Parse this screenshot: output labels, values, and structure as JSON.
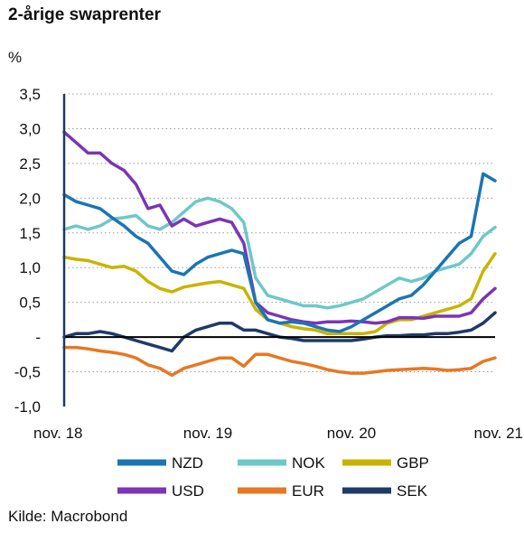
{
  "header": {
    "title": "2-årige swaprenter",
    "unit": "%"
  },
  "footer": {
    "source": "Kilde: Macrobond"
  },
  "chart_data": {
    "type": "line",
    "title": "2-årige swaprenter",
    "ylabel": "%",
    "ylim": [
      -1.0,
      3.5
    ],
    "yticks": [
      {
        "value": 3.5,
        "label": "3,5"
      },
      {
        "value": 3.0,
        "label": "3,0"
      },
      {
        "value": 2.5,
        "label": "2,5"
      },
      {
        "value": 2.0,
        "label": "2,0"
      },
      {
        "value": 1.5,
        "label": "1,5"
      },
      {
        "value": 1.0,
        "label": "1,0"
      },
      {
        "value": 0.5,
        "label": "0,5"
      },
      {
        "value": 0.0,
        "label": "-"
      },
      {
        "value": -0.5,
        "label": "-0,5"
      },
      {
        "value": -1.0,
        "label": "-1,0"
      }
    ],
    "xlim": [
      "2018-11",
      "2021-11"
    ],
    "xticks": [
      {
        "value": "2018-11",
        "label": "nov. 18"
      },
      {
        "value": "2019-11",
        "label": "nov. 19"
      },
      {
        "value": "2020-11",
        "label": "nov. 20"
      },
      {
        "value": "2021-11",
        "label": "nov. 21"
      }
    ],
    "grid": "horizontal-dotted",
    "legend_position": "bottom",
    "series": [
      {
        "name": "NZD",
        "color": "#1b75b4",
        "points": [
          [
            "2018-11",
            2.05
          ],
          [
            "2018-12",
            1.95
          ],
          [
            "2019-01",
            1.9
          ],
          [
            "2019-02",
            1.85
          ],
          [
            "2019-03",
            1.72
          ],
          [
            "2019-04",
            1.6
          ],
          [
            "2019-05",
            1.45
          ],
          [
            "2019-06",
            1.35
          ],
          [
            "2019-07",
            1.15
          ],
          [
            "2019-08",
            0.95
          ],
          [
            "2019-09",
            0.9
          ],
          [
            "2019-10",
            1.05
          ],
          [
            "2019-11",
            1.15
          ],
          [
            "2019-12",
            1.2
          ],
          [
            "2020-01",
            1.25
          ],
          [
            "2020-02",
            1.2
          ],
          [
            "2020-03",
            0.5
          ],
          [
            "2020-04",
            0.25
          ],
          [
            "2020-05",
            0.2
          ],
          [
            "2020-06",
            0.22
          ],
          [
            "2020-07",
            0.2
          ],
          [
            "2020-08",
            0.15
          ],
          [
            "2020-09",
            0.1
          ],
          [
            "2020-10",
            0.08
          ],
          [
            "2020-11",
            0.15
          ],
          [
            "2020-12",
            0.25
          ],
          [
            "2021-01",
            0.35
          ],
          [
            "2021-02",
            0.45
          ],
          [
            "2021-03",
            0.55
          ],
          [
            "2021-04",
            0.6
          ],
          [
            "2021-05",
            0.75
          ],
          [
            "2021-06",
            0.95
          ],
          [
            "2021-07",
            1.15
          ],
          [
            "2021-08",
            1.35
          ],
          [
            "2021-09",
            1.45
          ],
          [
            "2021-10",
            2.35
          ],
          [
            "2021-11",
            2.25
          ]
        ]
      },
      {
        "name": "NOK",
        "color": "#6ec8c8",
        "points": [
          [
            "2018-11",
            1.55
          ],
          [
            "2018-12",
            1.6
          ],
          [
            "2019-01",
            1.55
          ],
          [
            "2019-02",
            1.6
          ],
          [
            "2019-03",
            1.7
          ],
          [
            "2019-04",
            1.72
          ],
          [
            "2019-05",
            1.75
          ],
          [
            "2019-06",
            1.6
          ],
          [
            "2019-07",
            1.55
          ],
          [
            "2019-08",
            1.65
          ],
          [
            "2019-09",
            1.8
          ],
          [
            "2019-10",
            1.95
          ],
          [
            "2019-11",
            2.0
          ],
          [
            "2019-12",
            1.95
          ],
          [
            "2020-01",
            1.85
          ],
          [
            "2020-02",
            1.65
          ],
          [
            "2020-03",
            0.85
          ],
          [
            "2020-04",
            0.6
          ],
          [
            "2020-05",
            0.55
          ],
          [
            "2020-06",
            0.5
          ],
          [
            "2020-07",
            0.45
          ],
          [
            "2020-08",
            0.45
          ],
          [
            "2020-09",
            0.42
          ],
          [
            "2020-10",
            0.45
          ],
          [
            "2020-11",
            0.5
          ],
          [
            "2020-12",
            0.55
          ],
          [
            "2021-01",
            0.65
          ],
          [
            "2021-02",
            0.75
          ],
          [
            "2021-03",
            0.85
          ],
          [
            "2021-04",
            0.8
          ],
          [
            "2021-05",
            0.85
          ],
          [
            "2021-06",
            0.95
          ],
          [
            "2021-07",
            1.0
          ],
          [
            "2021-08",
            1.05
          ],
          [
            "2021-09",
            1.2
          ],
          [
            "2021-10",
            1.45
          ],
          [
            "2021-11",
            1.58
          ]
        ]
      },
      {
        "name": "GBP",
        "color": "#c8b400",
        "points": [
          [
            "2018-11",
            1.15
          ],
          [
            "2018-12",
            1.12
          ],
          [
            "2019-01",
            1.1
          ],
          [
            "2019-02",
            1.05
          ],
          [
            "2019-03",
            1.0
          ],
          [
            "2019-04",
            1.02
          ],
          [
            "2019-05",
            0.95
          ],
          [
            "2019-06",
            0.8
          ],
          [
            "2019-07",
            0.7
          ],
          [
            "2019-08",
            0.65
          ],
          [
            "2019-09",
            0.72
          ],
          [
            "2019-10",
            0.75
          ],
          [
            "2019-11",
            0.78
          ],
          [
            "2019-12",
            0.8
          ],
          [
            "2020-01",
            0.75
          ],
          [
            "2020-02",
            0.7
          ],
          [
            "2020-03",
            0.4
          ],
          [
            "2020-04",
            0.25
          ],
          [
            "2020-05",
            0.2
          ],
          [
            "2020-06",
            0.15
          ],
          [
            "2020-07",
            0.12
          ],
          [
            "2020-08",
            0.1
          ],
          [
            "2020-09",
            0.05
          ],
          [
            "2020-10",
            0.05
          ],
          [
            "2020-11",
            0.05
          ],
          [
            "2020-12",
            0.05
          ],
          [
            "2021-01",
            0.08
          ],
          [
            "2021-02",
            0.2
          ],
          [
            "2021-03",
            0.25
          ],
          [
            "2021-04",
            0.25
          ],
          [
            "2021-05",
            0.3
          ],
          [
            "2021-06",
            0.35
          ],
          [
            "2021-07",
            0.4
          ],
          [
            "2021-08",
            0.45
          ],
          [
            "2021-09",
            0.55
          ],
          [
            "2021-10",
            0.95
          ],
          [
            "2021-11",
            1.2
          ]
        ]
      },
      {
        "name": "USD",
        "color": "#7b35b5",
        "points": [
          [
            "2018-11",
            2.95
          ],
          [
            "2018-12",
            2.8
          ],
          [
            "2019-01",
            2.65
          ],
          [
            "2019-02",
            2.65
          ],
          [
            "2019-03",
            2.5
          ],
          [
            "2019-04",
            2.4
          ],
          [
            "2019-05",
            2.2
          ],
          [
            "2019-06",
            1.85
          ],
          [
            "2019-07",
            1.9
          ],
          [
            "2019-08",
            1.6
          ],
          [
            "2019-09",
            1.7
          ],
          [
            "2019-10",
            1.6
          ],
          [
            "2019-11",
            1.65
          ],
          [
            "2019-12",
            1.7
          ],
          [
            "2020-01",
            1.65
          ],
          [
            "2020-02",
            1.35
          ],
          [
            "2020-03",
            0.5
          ],
          [
            "2020-04",
            0.35
          ],
          [
            "2020-05",
            0.3
          ],
          [
            "2020-06",
            0.25
          ],
          [
            "2020-07",
            0.22
          ],
          [
            "2020-08",
            0.2
          ],
          [
            "2020-09",
            0.22
          ],
          [
            "2020-10",
            0.22
          ],
          [
            "2020-11",
            0.23
          ],
          [
            "2020-12",
            0.22
          ],
          [
            "2021-01",
            0.2
          ],
          [
            "2021-02",
            0.22
          ],
          [
            "2021-03",
            0.28
          ],
          [
            "2021-04",
            0.28
          ],
          [
            "2021-05",
            0.27
          ],
          [
            "2021-06",
            0.3
          ],
          [
            "2021-07",
            0.3
          ],
          [
            "2021-08",
            0.3
          ],
          [
            "2021-09",
            0.35
          ],
          [
            "2021-10",
            0.55
          ],
          [
            "2021-11",
            0.7
          ]
        ]
      },
      {
        "name": "EUR",
        "color": "#e87722",
        "points": [
          [
            "2018-11",
            -0.15
          ],
          [
            "2018-12",
            -0.15
          ],
          [
            "2019-01",
            -0.17
          ],
          [
            "2019-02",
            -0.2
          ],
          [
            "2019-03",
            -0.22
          ],
          [
            "2019-04",
            -0.25
          ],
          [
            "2019-05",
            -0.3
          ],
          [
            "2019-06",
            -0.4
          ],
          [
            "2019-07",
            -0.45
          ],
          [
            "2019-08",
            -0.55
          ],
          [
            "2019-09",
            -0.45
          ],
          [
            "2019-10",
            -0.4
          ],
          [
            "2019-11",
            -0.35
          ],
          [
            "2019-12",
            -0.3
          ],
          [
            "2020-01",
            -0.3
          ],
          [
            "2020-02",
            -0.42
          ],
          [
            "2020-03",
            -0.25
          ],
          [
            "2020-04",
            -0.25
          ],
          [
            "2020-05",
            -0.3
          ],
          [
            "2020-06",
            -0.35
          ],
          [
            "2020-07",
            -0.38
          ],
          [
            "2020-08",
            -0.42
          ],
          [
            "2020-09",
            -0.47
          ],
          [
            "2020-10",
            -0.5
          ],
          [
            "2020-11",
            -0.52
          ],
          [
            "2020-12",
            -0.52
          ],
          [
            "2021-01",
            -0.5
          ],
          [
            "2021-02",
            -0.48
          ],
          [
            "2021-03",
            -0.47
          ],
          [
            "2021-04",
            -0.46
          ],
          [
            "2021-05",
            -0.45
          ],
          [
            "2021-06",
            -0.46
          ],
          [
            "2021-07",
            -0.48
          ],
          [
            "2021-08",
            -0.47
          ],
          [
            "2021-09",
            -0.45
          ],
          [
            "2021-10",
            -0.35
          ],
          [
            "2021-11",
            -0.3
          ]
        ]
      },
      {
        "name": "SEK",
        "color": "#1f3a68",
        "points": [
          [
            "2018-11",
            0.0
          ],
          [
            "2018-12",
            0.05
          ],
          [
            "2019-01",
            0.05
          ],
          [
            "2019-02",
            0.08
          ],
          [
            "2019-03",
            0.05
          ],
          [
            "2019-04",
            0.0
          ],
          [
            "2019-05",
            -0.05
          ],
          [
            "2019-06",
            -0.1
          ],
          [
            "2019-07",
            -0.15
          ],
          [
            "2019-08",
            -0.2
          ],
          [
            "2019-09",
            0.0
          ],
          [
            "2019-10",
            0.1
          ],
          [
            "2019-11",
            0.15
          ],
          [
            "2019-12",
            0.2
          ],
          [
            "2020-01",
            0.2
          ],
          [
            "2020-02",
            0.1
          ],
          [
            "2020-03",
            0.1
          ],
          [
            "2020-04",
            0.05
          ],
          [
            "2020-05",
            0.0
          ],
          [
            "2020-06",
            -0.02
          ],
          [
            "2020-07",
            -0.05
          ],
          [
            "2020-08",
            -0.05
          ],
          [
            "2020-09",
            -0.05
          ],
          [
            "2020-10",
            -0.05
          ],
          [
            "2020-11",
            -0.05
          ],
          [
            "2020-12",
            -0.03
          ],
          [
            "2021-01",
            0.0
          ],
          [
            "2021-02",
            0.02
          ],
          [
            "2021-03",
            0.02
          ],
          [
            "2021-04",
            0.03
          ],
          [
            "2021-05",
            0.03
          ],
          [
            "2021-06",
            0.05
          ],
          [
            "2021-07",
            0.05
          ],
          [
            "2021-08",
            0.07
          ],
          [
            "2021-09",
            0.1
          ],
          [
            "2021-10",
            0.2
          ],
          [
            "2021-11",
            0.35
          ]
        ]
      }
    ]
  }
}
